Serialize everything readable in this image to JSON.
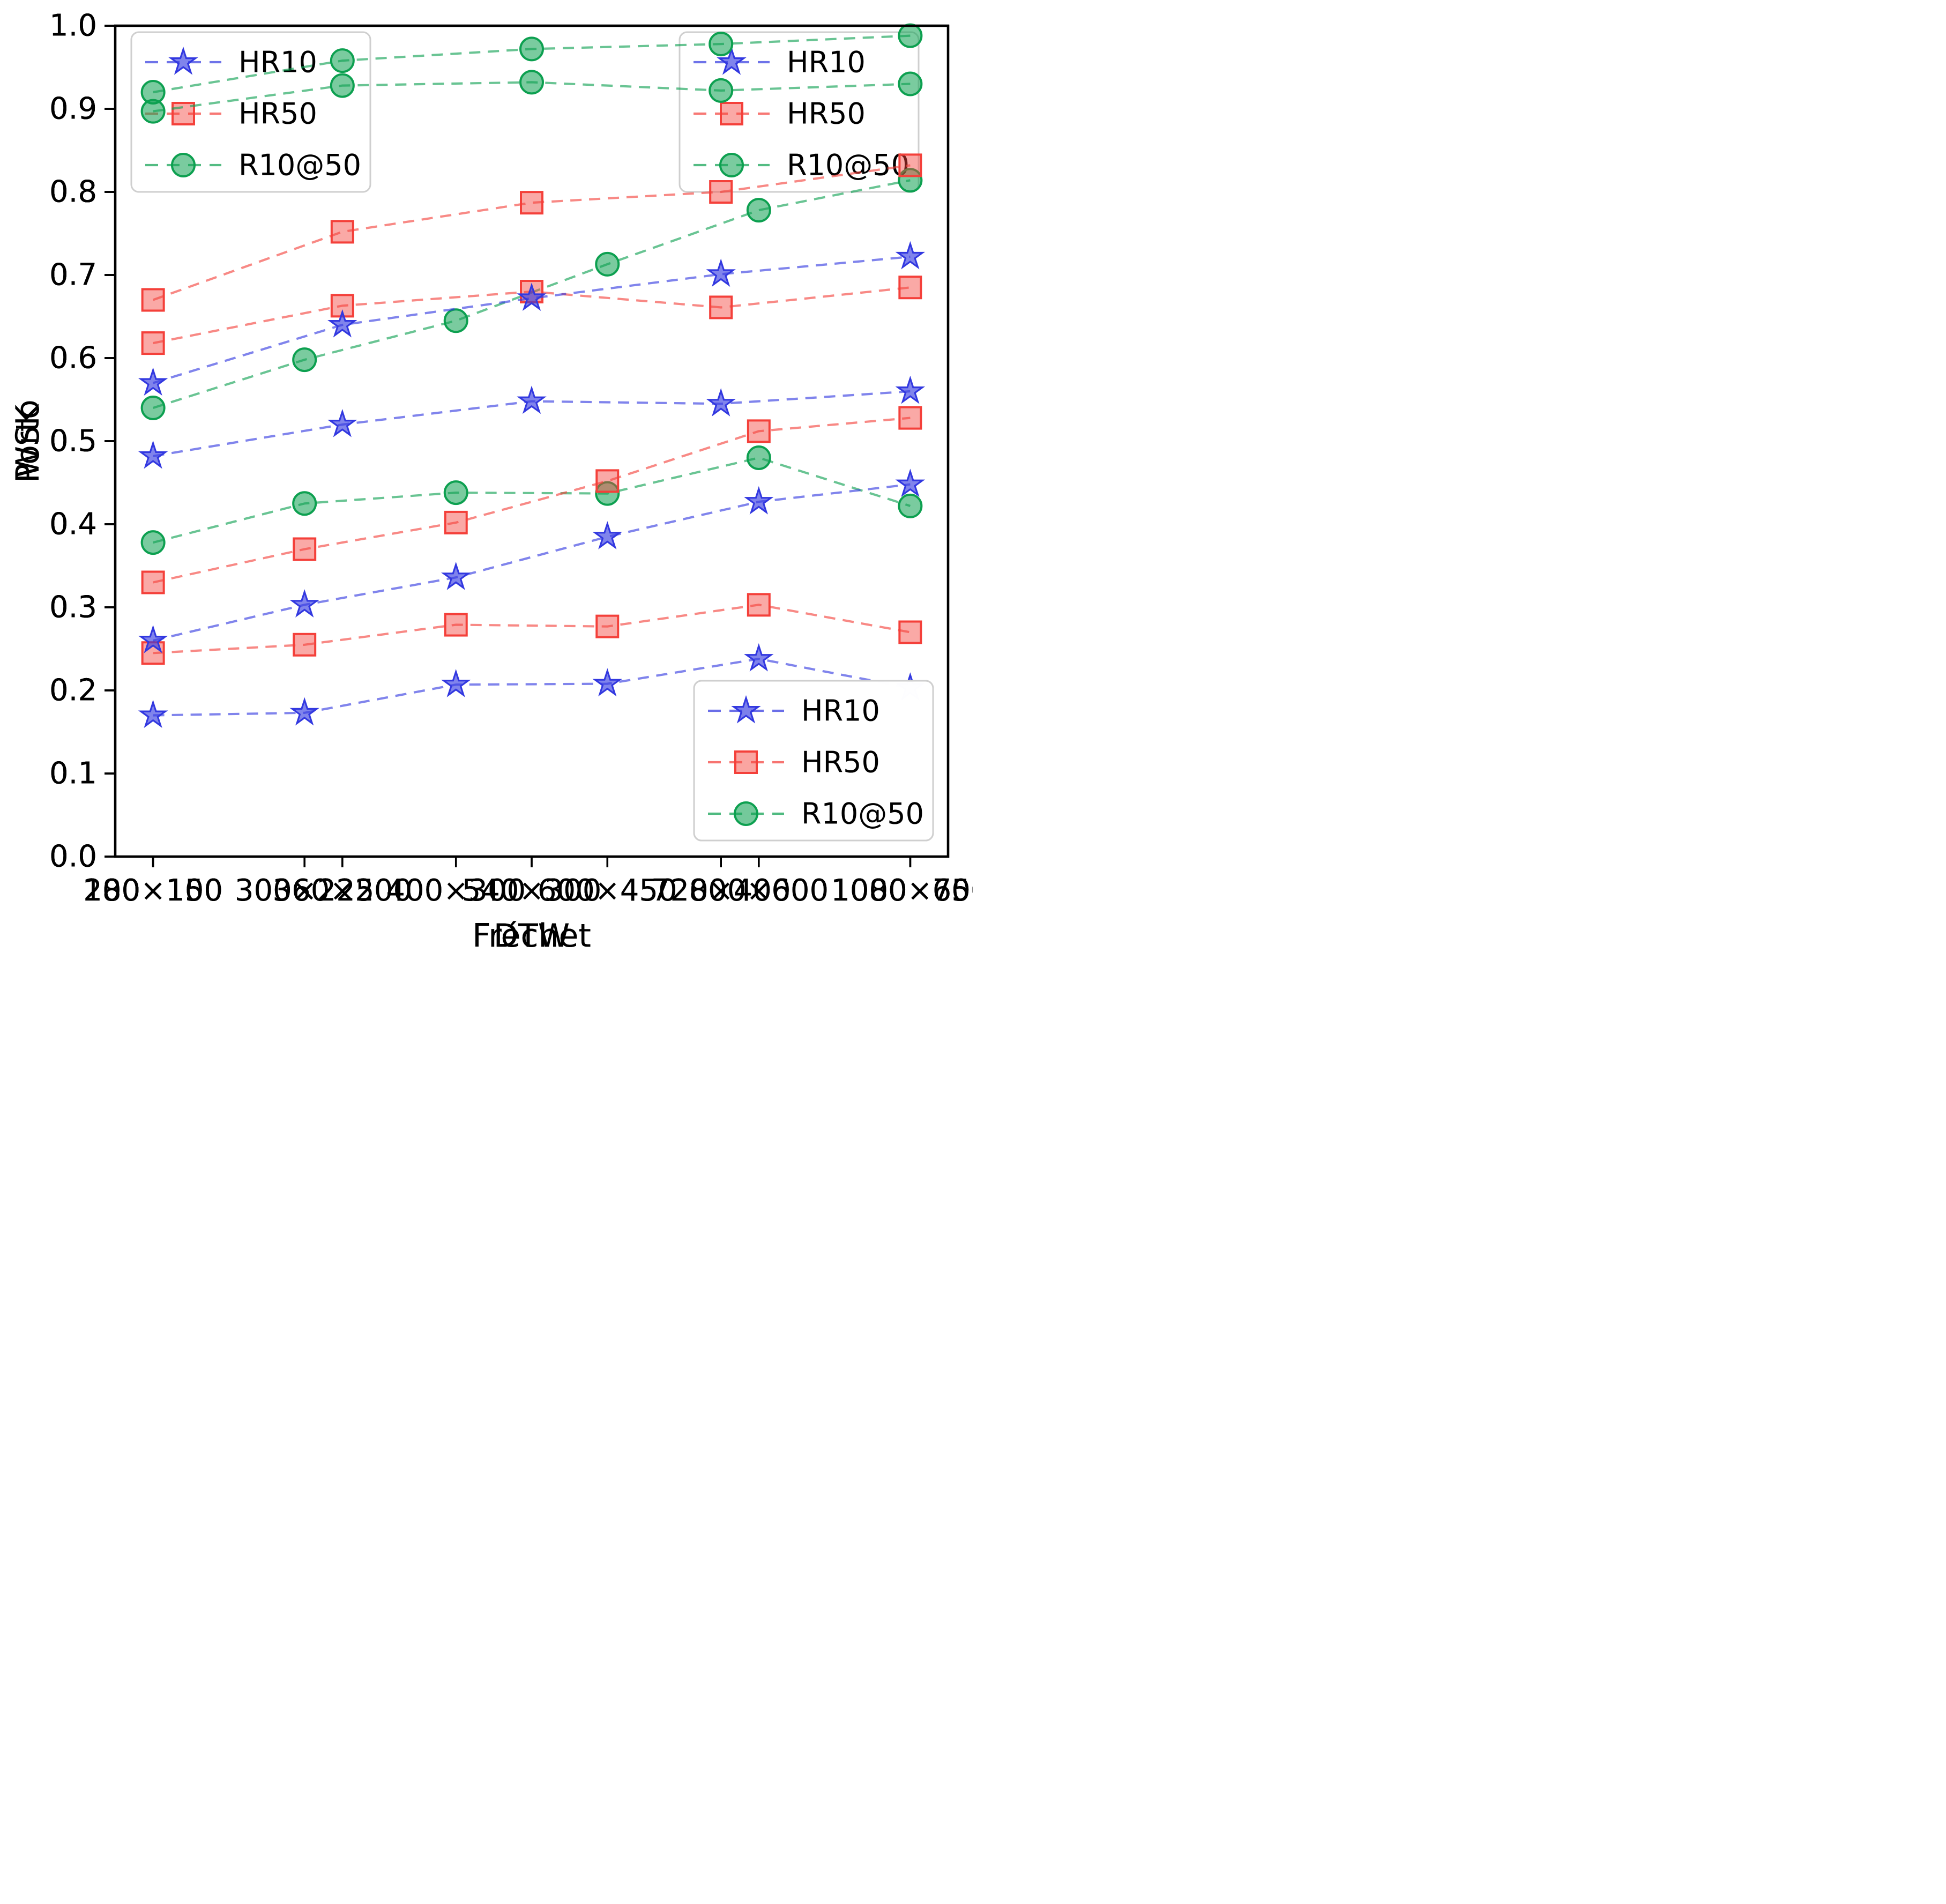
{
  "figure": {
    "description": "2x2 grid of dashed line charts with HR10, HR50 and R10@50 series over image resolutions",
    "row_labels": [
      "Porto",
      "WSK"
    ],
    "col_labels": [
      "DTW",
      "Fréchet"
    ]
  },
  "chart_data": [
    {
      "type": "line",
      "title": "",
      "xlabel": "DTW",
      "ylabel": "Porto",
      "categories": [
        "200×150",
        "300×225",
        "400×300",
        "600×450",
        "800×600",
        "1000×750"
      ],
      "ylim": [
        0.0,
        1.0
      ],
      "yticks": [
        0.0,
        0.1,
        0.2,
        0.3,
        0.4,
        0.5,
        0.6,
        0.7,
        0.8,
        0.9,
        1.0
      ],
      "grid": false,
      "legend_position": "upper-right",
      "series": [
        {
          "name": "HR10",
          "marker": "star",
          "color": "#3238e0",
          "linestyle": "dashed",
          "values": [
            0.17,
            0.173,
            0.207,
            0.208,
            0.238,
            0.203
          ]
        },
        {
          "name": "HR50",
          "marker": "square",
          "color": "#f4403a",
          "linestyle": "dashed",
          "values": [
            0.245,
            0.255,
            0.279,
            0.277,
            0.303,
            0.27
          ]
        },
        {
          "name": "R10@50",
          "marker": "circle",
          "color": "#0da050",
          "linestyle": "dashed",
          "values": [
            0.378,
            0.425,
            0.438,
            0.437,
            0.48,
            0.422
          ]
        }
      ]
    },
    {
      "type": "line",
      "title": "",
      "xlabel": "Fréchet",
      "ylabel": "",
      "categories": [
        "200×150",
        "300×225",
        "400×300",
        "600×450",
        "800×600",
        "1000×750"
      ],
      "ylim": [
        0.0,
        1.0
      ],
      "yticks": [
        0.0,
        0.1,
        0.2,
        0.3,
        0.4,
        0.5,
        0.6,
        0.7,
        0.8,
        0.9,
        1.0
      ],
      "grid": false,
      "legend_position": "upper-left",
      "series": [
        {
          "name": "HR10",
          "marker": "star",
          "color": "#3238e0",
          "linestyle": "dashed",
          "values": [
            0.26,
            0.303,
            0.336,
            0.385,
            0.427,
            0.448
          ]
        },
        {
          "name": "HR50",
          "marker": "square",
          "color": "#f4403a",
          "linestyle": "dashed",
          "values": [
            0.33,
            0.37,
            0.402,
            0.452,
            0.512,
            0.528
          ]
        },
        {
          "name": "R10@50",
          "marker": "circle",
          "color": "#0da050",
          "linestyle": "dashed",
          "values": [
            0.54,
            0.598,
            0.645,
            0.713,
            0.778,
            0.814
          ]
        }
      ]
    },
    {
      "type": "line",
      "title": "",
      "xlabel": "DTW",
      "ylabel": "WSK",
      "categories": [
        "180×100",
        "360×200",
        "540×300",
        "720×400",
        "1080×600"
      ],
      "ylim": [
        0.0,
        1.0
      ],
      "yticks": [
        0.0,
        0.1,
        0.2,
        0.3,
        0.4,
        0.5,
        0.6,
        0.7,
        0.8,
        0.9,
        1.0
      ],
      "grid": false,
      "legend_position": "lower-right",
      "series": [
        {
          "name": "HR10",
          "marker": "star",
          "color": "#3238e0",
          "linestyle": "dashed",
          "values": [
            0.482,
            0.52,
            0.548,
            0.545,
            0.56
          ]
        },
        {
          "name": "HR50",
          "marker": "square",
          "color": "#f4403a",
          "linestyle": "dashed",
          "values": [
            0.618,
            0.663,
            0.68,
            0.661,
            0.685
          ]
        },
        {
          "name": "R10@50",
          "marker": "circle",
          "color": "#0da050",
          "linestyle": "dashed",
          "values": [
            0.897,
            0.928,
            0.932,
            0.922,
            0.93
          ]
        }
      ]
    },
    {
      "type": "line",
      "title": "",
      "xlabel": "Fréchet",
      "ylabel": "",
      "categories": [
        "180×100",
        "360×200",
        "540×300",
        "720×400",
        "1080×600"
      ],
      "ylim": [
        0.0,
        1.0
      ],
      "yticks": [
        0.0,
        0.1,
        0.2,
        0.3,
        0.4,
        0.5,
        0.6,
        0.7,
        0.8,
        0.9,
        1.0
      ],
      "grid": false,
      "legend_position": "lower-right",
      "series": [
        {
          "name": "HR10",
          "marker": "star",
          "color": "#3238e0",
          "linestyle": "dashed",
          "values": [
            0.57,
            0.64,
            0.672,
            0.701,
            0.722
          ]
        },
        {
          "name": "HR50",
          "marker": "square",
          "color": "#f4403a",
          "linestyle": "dashed",
          "values": [
            0.67,
            0.752,
            0.787,
            0.8,
            0.832
          ]
        },
        {
          "name": "R10@50",
          "marker": "circle",
          "color": "#0da050",
          "linestyle": "dashed",
          "values": [
            0.92,
            0.958,
            0.972,
            0.978,
            0.988
          ]
        }
      ]
    }
  ]
}
